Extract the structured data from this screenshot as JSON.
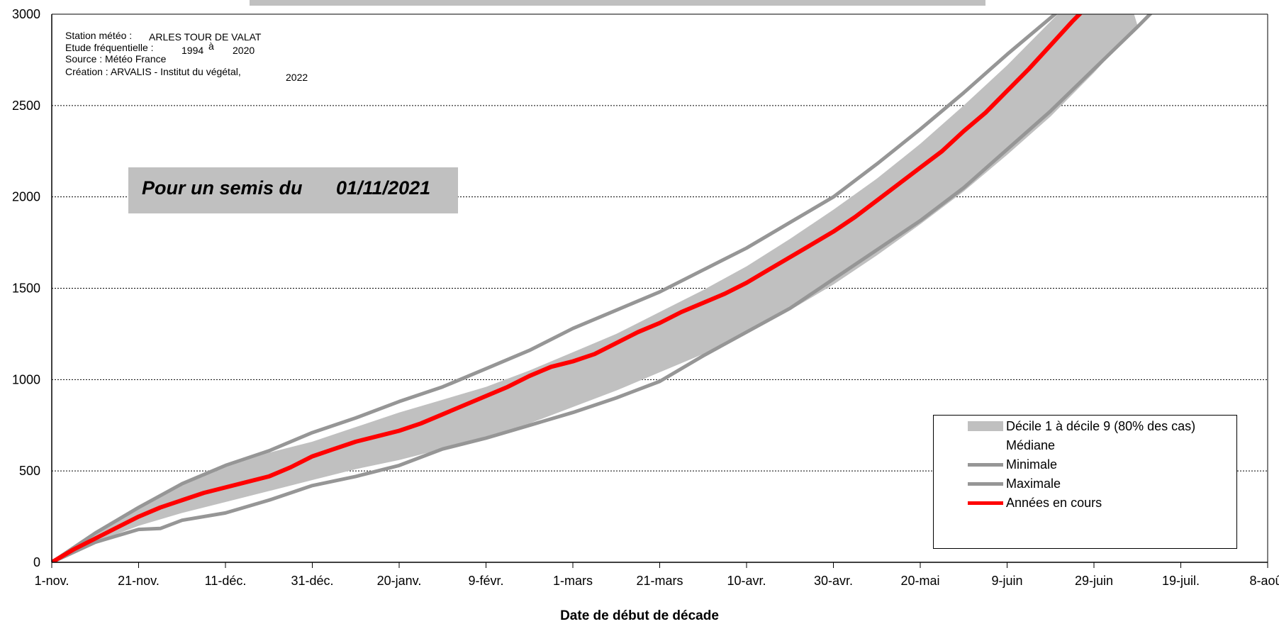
{
  "info": {
    "station_label": "Station météo :",
    "station_value": "ARLES TOUR DE VALAT",
    "study_label": "Etude fréquentielle :",
    "study_start": "1994",
    "study_sep": "à",
    "study_end": "2020",
    "source": "Source : Météo France",
    "creation": "Création : ARVALIS - Institut du végétal,",
    "creation_year": "2022"
  },
  "banner": {
    "prefix": "Pour un semis du",
    "date": "01/11/2021"
  },
  "colors": {
    "band": "#c0c0c0",
    "minmax": "#969696",
    "current": "#ff0000",
    "grid": "#000000",
    "axis": "#000000"
  },
  "chart_data": {
    "type": "line",
    "title": "",
    "xlabel": "Date de début de décade",
    "ylabel": "",
    "ylim": [
      0,
      3000
    ],
    "yticks": [
      0,
      500,
      1000,
      1500,
      2000,
      2500,
      3000
    ],
    "grid": "horizontal dotted",
    "legend_position": "bottom-right",
    "x_unit": "days since 1-nov.",
    "xlim": [
      0,
      280
    ],
    "xticks": [
      {
        "day": 0,
        "label": "1-nov."
      },
      {
        "day": 20,
        "label": "21-nov."
      },
      {
        "day": 40,
        "label": "11-déc."
      },
      {
        "day": 60,
        "label": "31-déc."
      },
      {
        "day": 80,
        "label": "20-janv."
      },
      {
        "day": 100,
        "label": "9-févr."
      },
      {
        "day": 120,
        "label": "1-mars"
      },
      {
        "day": 140,
        "label": "21-mars"
      },
      {
        "day": 160,
        "label": "10-avr."
      },
      {
        "day": 180,
        "label": "30-avr."
      },
      {
        "day": 200,
        "label": "20-mai"
      },
      {
        "day": 220,
        "label": "9-juin"
      },
      {
        "day": 240,
        "label": "29-juin"
      },
      {
        "day": 260,
        "label": "19-juil."
      },
      {
        "day": 280,
        "label": "8-août"
      }
    ],
    "legend": [
      {
        "name": "Décile 1 à décile 9 (80% des cas)",
        "style": "band"
      },
      {
        "name": "Médiane",
        "style": "none"
      },
      {
        "name": "Minimale",
        "style": "minmax"
      },
      {
        "name": "Maximale",
        "style": "minmax"
      },
      {
        "name": "Années en cours",
        "style": "current"
      }
    ],
    "series": [
      {
        "name": "Décile 1",
        "x": [
          0,
          10,
          20,
          30,
          40,
          50,
          60,
          70,
          80,
          90,
          100,
          110,
          120,
          130,
          140,
          150,
          160,
          170,
          180,
          190,
          200,
          210,
          220,
          230,
          240,
          250
        ],
        "values": [
          0,
          110,
          200,
          270,
          330,
          390,
          450,
          510,
          560,
          620,
          690,
          760,
          850,
          940,
          1040,
          1140,
          1260,
          1380,
          1520,
          1680,
          1850,
          2030,
          2230,
          2440,
          2680,
          2940
        ]
      },
      {
        "name": "Décile 9",
        "x": [
          0,
          10,
          20,
          30,
          40,
          50,
          60,
          70,
          80,
          90,
          100,
          110,
          120,
          130,
          140,
          150,
          160,
          170,
          180,
          190,
          200,
          210,
          220,
          230,
          240,
          245
        ],
        "values": [
          0,
          150,
          300,
          420,
          520,
          600,
          660,
          740,
          820,
          890,
          960,
          1050,
          1150,
          1250,
          1370,
          1490,
          1620,
          1770,
          1930,
          2100,
          2290,
          2500,
          2720,
          2960,
          3200,
          3330
        ]
      },
      {
        "name": "Minimale",
        "x": [
          0,
          10,
          20,
          25,
          30,
          40,
          50,
          60,
          70,
          80,
          90,
          100,
          110,
          120,
          130,
          140,
          150,
          160,
          170,
          180,
          190,
          200,
          210,
          220,
          230,
          240,
          250,
          255
        ],
        "values": [
          0,
          110,
          180,
          185,
          230,
          270,
          340,
          420,
          470,
          530,
          620,
          680,
          750,
          820,
          900,
          990,
          1130,
          1260,
          1390,
          1550,
          1710,
          1870,
          2050,
          2260,
          2470,
          2700,
          2930,
          3050
        ]
      },
      {
        "name": "Maximale",
        "x": [
          0,
          10,
          20,
          30,
          40,
          50,
          60,
          70,
          80,
          90,
          100,
          110,
          120,
          130,
          140,
          150,
          160,
          170,
          180,
          190,
          200,
          210,
          220,
          230,
          235
        ],
        "values": [
          0,
          160,
          300,
          430,
          530,
          610,
          710,
          790,
          880,
          960,
          1060,
          1160,
          1280,
          1380,
          1480,
          1600,
          1720,
          1860,
          2000,
          2180,
          2370,
          2570,
          2780,
          2980,
          3080
        ]
      },
      {
        "name": "Années en cours",
        "x": [
          0,
          5,
          10,
          15,
          20,
          25,
          30,
          35,
          40,
          45,
          50,
          55,
          60,
          65,
          70,
          75,
          80,
          85,
          90,
          95,
          100,
          105,
          110,
          115,
          120,
          125,
          130,
          135,
          140,
          145,
          150,
          155,
          160,
          165,
          170,
          175,
          180,
          185,
          190,
          195,
          200,
          205,
          210,
          215,
          220,
          225,
          230,
          235,
          240,
          242
        ],
        "values": [
          0,
          70,
          130,
          190,
          250,
          300,
          340,
          380,
          410,
          440,
          470,
          520,
          580,
          620,
          660,
          690,
          720,
          760,
          810,
          860,
          910,
          960,
          1020,
          1070,
          1100,
          1140,
          1200,
          1260,
          1310,
          1370,
          1420,
          1470,
          1530,
          1600,
          1670,
          1740,
          1810,
          1890,
          1980,
          2070,
          2160,
          2250,
          2360,
          2460,
          2580,
          2700,
          2830,
          2960,
          3080,
          3130
        ]
      }
    ]
  },
  "footer": {
    "xlabel": "Date de début de décade"
  }
}
